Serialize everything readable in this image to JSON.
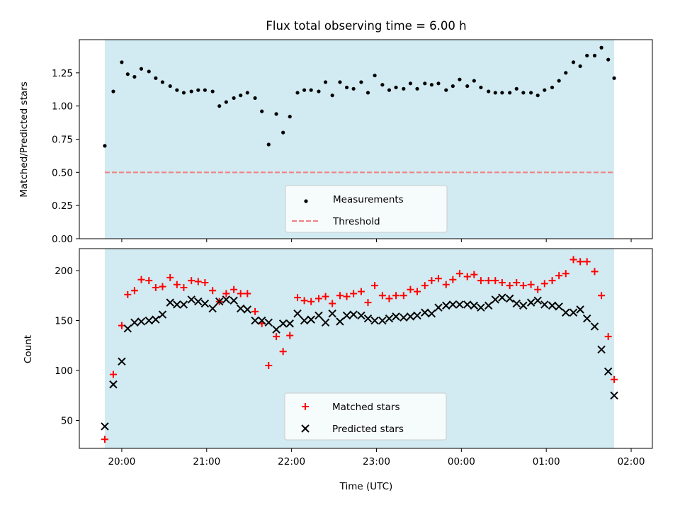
{
  "title": "Flux total observing time = 6.00 h",
  "xlabel": "Time (UTC)",
  "colors": {
    "span": "#add8e6",
    "measurements": "#000000",
    "threshold": "#f08080",
    "matched": "#ff0000",
    "predicted": "#000000"
  },
  "chart_data": [
    {
      "type": "scatter",
      "ylabel": "Matched/Predicted stars",
      "xlim_hours": [
        19.5,
        26.25
      ],
      "ylim": [
        0.0,
        1.5
      ],
      "yticks": [
        "0.00",
        "0.25",
        "0.50",
        "0.75",
        "1.00",
        "1.25"
      ],
      "ytick_values": [
        0.0,
        0.25,
        0.5,
        0.75,
        1.0,
        1.25
      ],
      "span_hours": [
        19.8,
        25.8
      ],
      "threshold": 0.5,
      "legend": {
        "placement": "lower center",
        "entries": [
          "Measurements",
          "Threshold"
        ]
      },
      "series": [
        {
          "name": "Measurements",
          "x": [
            19.8,
            19.9,
            20.0,
            20.07,
            20.15,
            20.23,
            20.32,
            20.4,
            20.48,
            20.57,
            20.65,
            20.73,
            20.82,
            20.9,
            20.98,
            21.07,
            21.15,
            21.23,
            21.32,
            21.4,
            21.48,
            21.57,
            21.65,
            21.73,
            21.82,
            21.9,
            21.98,
            22.07,
            22.15,
            22.23,
            22.32,
            22.4,
            22.48,
            22.57,
            22.65,
            22.73,
            22.82,
            22.9,
            22.98,
            23.07,
            23.15,
            23.23,
            23.32,
            23.4,
            23.48,
            23.57,
            23.65,
            23.73,
            23.82,
            23.9,
            23.98,
            24.07,
            24.15,
            24.23,
            24.32,
            24.4,
            24.48,
            24.57,
            24.65,
            24.73,
            24.82,
            24.9,
            24.98,
            25.07,
            25.15,
            25.23,
            25.32,
            25.4,
            25.48,
            25.57,
            25.65,
            25.73,
            25.8
          ],
          "y": [
            0.7,
            1.11,
            1.33,
            1.24,
            1.22,
            1.28,
            1.26,
            1.21,
            1.18,
            1.15,
            1.12,
            1.1,
            1.11,
            1.12,
            1.12,
            1.11,
            1.0,
            1.03,
            1.06,
            1.08,
            1.1,
            1.06,
            0.96,
            0.71,
            0.94,
            0.8,
            0.92,
            1.1,
            1.12,
            1.12,
            1.11,
            1.18,
            1.08,
            1.18,
            1.14,
            1.13,
            1.18,
            1.1,
            1.23,
            1.16,
            1.12,
            1.14,
            1.13,
            1.17,
            1.13,
            1.17,
            1.16,
            1.17,
            1.12,
            1.15,
            1.2,
            1.15,
            1.19,
            1.14,
            1.11,
            1.1,
            1.1,
            1.1,
            1.13,
            1.1,
            1.1,
            1.08,
            1.12,
            1.14,
            1.19,
            1.25,
            1.33,
            1.3,
            1.38,
            1.38,
            1.44,
            1.35,
            1.21
          ]
        }
      ]
    },
    {
      "type": "scatter",
      "ylabel": "Count",
      "xlim_hours": [
        19.5,
        26.25
      ],
      "ylim": [
        22,
        222
      ],
      "yticks": [
        "50",
        "100",
        "150",
        "200"
      ],
      "ytick_values": [
        50,
        100,
        150,
        200
      ],
      "xticks": [
        "20:00",
        "21:00",
        "22:00",
        "23:00",
        "00:00",
        "01:00",
        "02:00"
      ],
      "xtick_hours": [
        20,
        21,
        22,
        23,
        24,
        25,
        26
      ],
      "span_hours": [
        19.8,
        25.8
      ],
      "legend": {
        "placement": "lower center",
        "entries": [
          "Matched stars",
          "Predicted stars"
        ]
      },
      "series": [
        {
          "name": "Matched stars",
          "x": [
            19.8,
            19.9,
            20.0,
            20.07,
            20.15,
            20.23,
            20.32,
            20.4,
            20.48,
            20.57,
            20.65,
            20.73,
            20.82,
            20.9,
            20.98,
            21.07,
            21.15,
            21.23,
            21.32,
            21.4,
            21.48,
            21.57,
            21.65,
            21.73,
            21.82,
            21.9,
            21.98,
            22.07,
            22.15,
            22.23,
            22.32,
            22.4,
            22.48,
            22.57,
            22.65,
            22.73,
            22.82,
            22.9,
            22.98,
            23.07,
            23.15,
            23.23,
            23.32,
            23.4,
            23.48,
            23.57,
            23.65,
            23.73,
            23.82,
            23.9,
            23.98,
            24.07,
            24.15,
            24.23,
            24.32,
            24.4,
            24.48,
            24.57,
            24.65,
            24.73,
            24.82,
            24.9,
            24.98,
            25.07,
            25.15,
            25.23,
            25.32,
            25.4,
            25.48,
            25.57,
            25.65,
            25.73,
            25.8
          ],
          "y": [
            31,
            96,
            145,
            176,
            180,
            191,
            190,
            183,
            184,
            193,
            186,
            183,
            190,
            189,
            188,
            180,
            169,
            177,
            181,
            177,
            177,
            159,
            147,
            105,
            134,
            119,
            135,
            173,
            170,
            169,
            172,
            174,
            167,
            175,
            174,
            177,
            179,
            168,
            185,
            175,
            172,
            175,
            175,
            181,
            179,
            185,
            190,
            192,
            186,
            191,
            197,
            194,
            196,
            190,
            190,
            190,
            188,
            185,
            188,
            185,
            186,
            181,
            187,
            190,
            195,
            197,
            211,
            209,
            209,
            199,
            175,
            134,
            91
          ]
        },
        {
          "name": "Predicted stars",
          "x": [
            19.8,
            19.9,
            20.0,
            20.07,
            20.15,
            20.23,
            20.32,
            20.4,
            20.48,
            20.57,
            20.65,
            20.73,
            20.82,
            20.9,
            20.98,
            21.07,
            21.15,
            21.23,
            21.32,
            21.4,
            21.48,
            21.57,
            21.65,
            21.73,
            21.82,
            21.9,
            21.98,
            22.07,
            22.15,
            22.23,
            22.32,
            22.4,
            22.48,
            22.57,
            22.65,
            22.73,
            22.82,
            22.9,
            22.98,
            23.07,
            23.15,
            23.23,
            23.32,
            23.4,
            23.48,
            23.57,
            23.65,
            23.73,
            23.82,
            23.9,
            23.98,
            24.07,
            24.15,
            24.23,
            24.32,
            24.4,
            24.48,
            24.57,
            24.65,
            24.73,
            24.82,
            24.9,
            24.98,
            25.07,
            25.15,
            25.23,
            25.32,
            25.4,
            25.48,
            25.57,
            25.65,
            25.73,
            25.8
          ],
          "y": [
            44,
            86,
            109,
            142,
            148,
            149,
            150,
            151,
            156,
            168,
            166,
            166,
            171,
            169,
            167,
            162,
            169,
            171,
            170,
            162,
            161,
            150,
            150,
            148,
            141,
            147,
            147,
            157,
            150,
            151,
            155,
            148,
            157,
            149,
            155,
            156,
            155,
            152,
            150,
            150,
            152,
            154,
            153,
            154,
            155,
            158,
            157,
            163,
            165,
            166,
            166,
            166,
            165,
            163,
            165,
            171,
            173,
            172,
            167,
            165,
            168,
            170,
            166,
            165,
            164,
            158,
            158,
            161,
            152,
            144,
            121,
            99,
            75
          ]
        }
      ]
    }
  ]
}
